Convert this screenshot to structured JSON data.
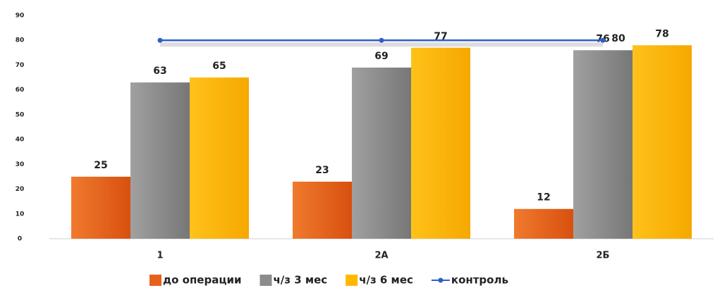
{
  "chart_data": {
    "type": "bar",
    "categories": [
      "1",
      "2А",
      "2Б"
    ],
    "series": [
      {
        "name": "до операции",
        "color": "#e8601c",
        "values": [
          25,
          23,
          12
        ]
      },
      {
        "name": "ч/з 3 мес",
        "color": "#8c8c8c",
        "values": [
          63,
          69,
          76
        ]
      },
      {
        "name": "ч/з 6 мес",
        "color": "#ffb800",
        "values": [
          65,
          77,
          78
        ]
      },
      {
        "name": "контроль",
        "color": "#2f5fc4",
        "type": "line",
        "values": [
          80,
          80,
          80
        ]
      }
    ],
    "ylim": [
      0,
      90
    ],
    "yticks": [
      0,
      10,
      20,
      30,
      40,
      50,
      60,
      70,
      80,
      90
    ],
    "grid": false,
    "legend": "bottom"
  }
}
